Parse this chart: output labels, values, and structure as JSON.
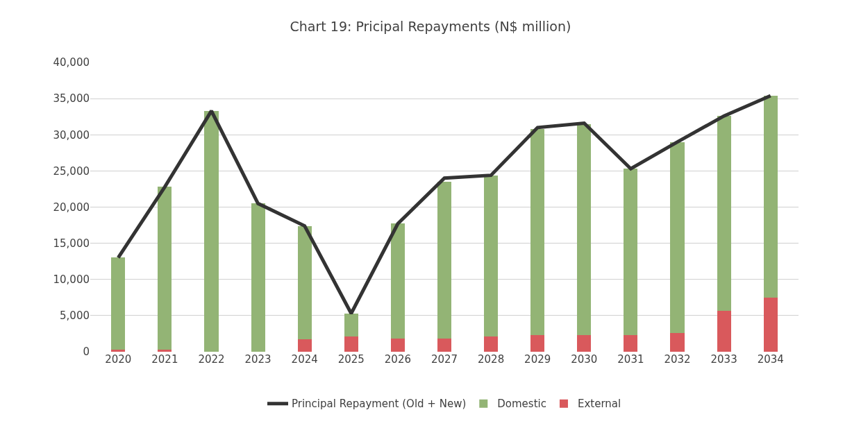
{
  "chart_data": {
    "type": "bar",
    "title": "Chart 19: Pricipal Repayments (N$ million)",
    "stacked": true,
    "categories": [
      "2020",
      "2021",
      "2022",
      "2023",
      "2024",
      "2025",
      "2026",
      "2027",
      "2028",
      "2029",
      "2030",
      "2031",
      "2032",
      "2033",
      "2034"
    ],
    "series": [
      {
        "name": "External",
        "color": "#d9595c",
        "values": [
          300,
          300,
          0,
          0,
          1700,
          2100,
          1800,
          1800,
          2100,
          2300,
          2300,
          2300,
          2600,
          5700,
          7500
        ]
      },
      {
        "name": "Domestic",
        "color": "#93b475",
        "values": [
          12700,
          22500,
          33300,
          20500,
          15700,
          3200,
          15900,
          21700,
          22300,
          28500,
          29200,
          23000,
          26400,
          26900,
          27900
        ]
      },
      {
        "name": "Principal Repayment (Old + New)",
        "type": "line",
        "color": "#333333",
        "values": [
          13000,
          22800,
          33300,
          20500,
          17400,
          5300,
          17700,
          24000,
          24400,
          31000,
          31600,
          25300,
          29000,
          32600,
          35400
        ]
      }
    ],
    "ylim": [
      0,
      40000
    ],
    "yticks": [
      {
        "value": 0,
        "label": "0"
      },
      {
        "value": 5000,
        "label": "5,000"
      },
      {
        "value": 10000,
        "label": "10,000"
      },
      {
        "value": 15000,
        "label": "15,000"
      },
      {
        "value": 20000,
        "label": "20,000"
      },
      {
        "value": 25000,
        "label": "25,000"
      },
      {
        "value": 30000,
        "label": "30,000"
      },
      {
        "value": 35000,
        "label": "35,000"
      },
      {
        "value": 40000,
        "label": "40,000"
      }
    ],
    "grid": "y",
    "legend": "bottom",
    "marker": "none",
    "line_style": "solid"
  }
}
